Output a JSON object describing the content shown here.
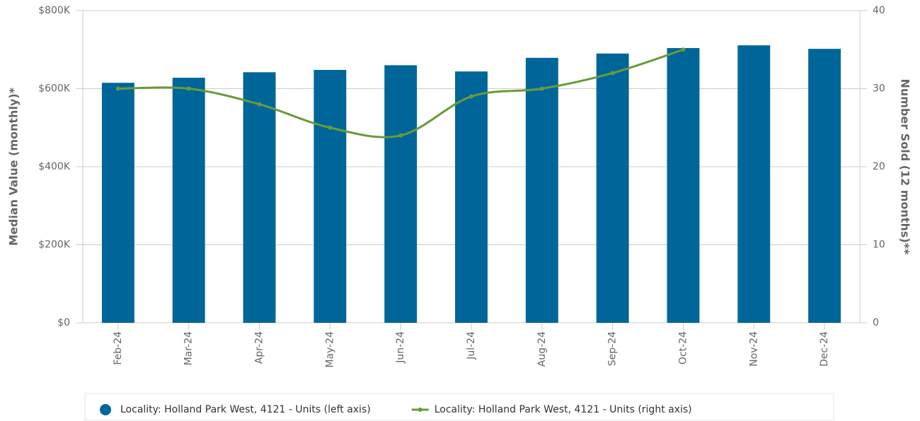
{
  "chart_data": {
    "type": "bar_line",
    "categories": [
      "Feb-24",
      "Mar-24",
      "Apr-24",
      "May-24",
      "Jun-24",
      "Jul-24",
      "Aug-24",
      "Sep-24",
      "Oct-24",
      "Nov-24",
      "Dec-24"
    ],
    "y_label": "Median Value (monthly)*",
    "y2_label": "Number Sold (12 months)**",
    "series": [
      {
        "name": "Locality: Holland Park West, 4121 - Units (left axis)",
        "color": "#006699",
        "type": "bar",
        "values": [
          615000,
          628000,
          642000,
          648000,
          660000,
          644000,
          679000,
          690000,
          704000,
          711000,
          702000
        ]
      },
      {
        "name": "Locality: Holland Park West, 4121 - Units (right axis)",
        "color": "#6a9a3a",
        "type": "line",
        "axis": "y2",
        "values": [
          30,
          30,
          28,
          25,
          24,
          29,
          30,
          32,
          35,
          null,
          null
        ]
      }
    ],
    "ylim": [
      0,
      800000
    ],
    "yticks": [
      {
        "value": 0,
        "label": "$0"
      },
      {
        "value": 200000,
        "label": "$200K"
      },
      {
        "value": 400000,
        "label": "$400K"
      },
      {
        "value": 600000,
        "label": "$600K"
      },
      {
        "value": 800000,
        "label": "$800K"
      }
    ],
    "y2lim": [
      0,
      40
    ],
    "y2ticks": [
      0,
      10,
      20,
      30,
      40
    ],
    "grid": true
  }
}
